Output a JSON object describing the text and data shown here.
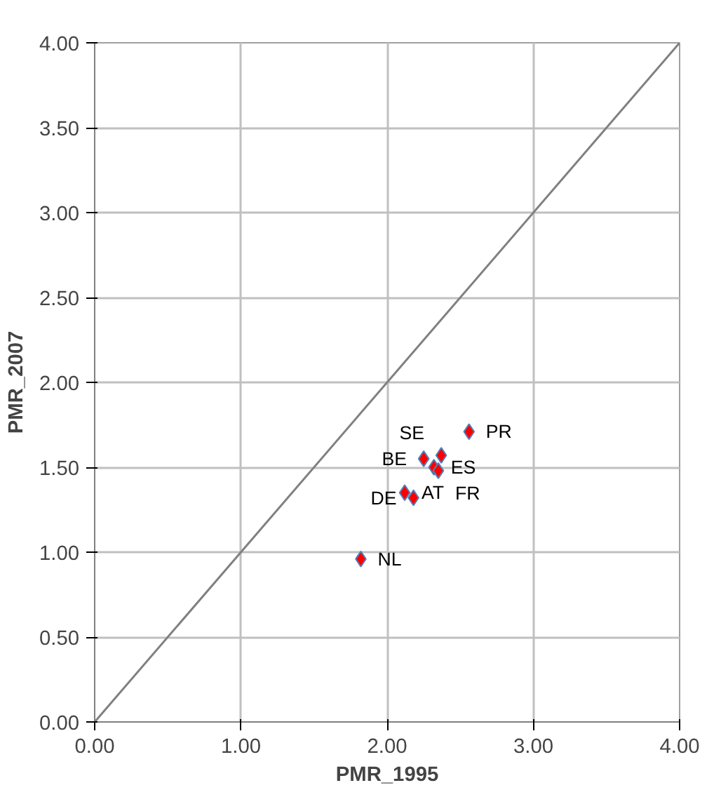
{
  "chart_data": {
    "type": "scatter",
    "xlabel": "PMR_1995",
    "ylabel": "PMR_2007",
    "xlim": [
      0,
      4
    ],
    "ylim": [
      0,
      4
    ],
    "xticks": [
      {
        "value": 0,
        "label": "0.00"
      },
      {
        "value": 1,
        "label": "1.00"
      },
      {
        "value": 2,
        "label": "2.00"
      },
      {
        "value": 3,
        "label": "3.00"
      },
      {
        "value": 4,
        "label": "4.00"
      }
    ],
    "yticks": [
      {
        "value": 0,
        "label": "0.00"
      },
      {
        "value": 0.5,
        "label": "0.50"
      },
      {
        "value": 1,
        "label": "1.00"
      },
      {
        "value": 1.5,
        "label": "1.50"
      },
      {
        "value": 2,
        "label": "2.00"
      },
      {
        "value": 2.5,
        "label": "2.50"
      },
      {
        "value": 3,
        "label": "3.00"
      },
      {
        "value": 3.5,
        "label": "3.50"
      },
      {
        "value": 4,
        "label": "4.00"
      }
    ],
    "grid": true,
    "marker": "diamond",
    "series": [
      {
        "color": "#ff0000",
        "x": [
          1.82,
          2.12,
          2.18,
          2.25,
          2.32,
          2.35,
          2.37,
          2.56
        ],
        "values": [
          0.96,
          1.35,
          1.32,
          1.55,
          1.5,
          1.48,
          1.57,
          1.71
        ]
      },
      {
        "type": "line",
        "color": "#808080",
        "marker": "none",
        "x": [
          0,
          4
        ],
        "values": [
          0,
          4
        ]
      }
    ],
    "annotations": [
      {
        "text": "NL",
        "x": 1.82,
        "y": 0.96
      },
      {
        "text": "AT",
        "x": 2.12,
        "y": 1.35
      },
      {
        "text": "DE",
        "x": 2.18,
        "y": 1.32
      },
      {
        "text": "BE",
        "x": 2.25,
        "y": 1.55
      },
      {
        "text": "ES",
        "x": 2.32,
        "y": 1.5
      },
      {
        "text": "FR",
        "x": 2.35,
        "y": 1.48
      },
      {
        "text": "SE",
        "x": 2.37,
        "y": 1.57
      },
      {
        "text": "PR",
        "x": 2.56,
        "y": 1.71
      }
    ]
  }
}
